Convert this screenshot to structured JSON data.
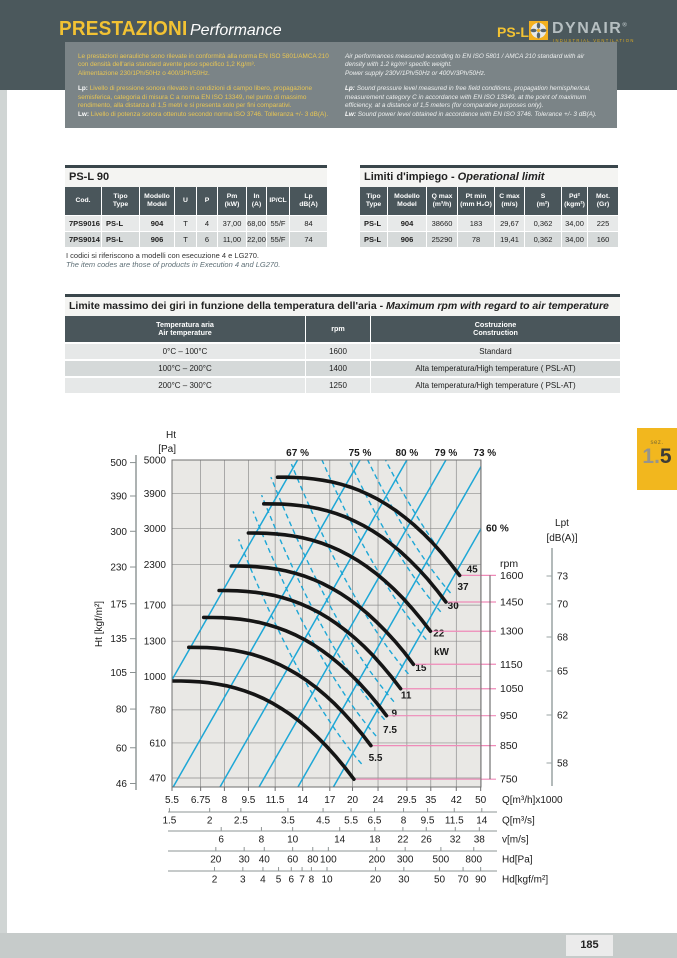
{
  "header": {
    "title_it": "PRESTAZIONI",
    "title_en": "Performance",
    "product": "PS-L",
    "brand": "DYNAIR",
    "brand_reg": "®",
    "brand_tagline": "INDUSTRIAL VENTILATION"
  },
  "info_box": {
    "it": {
      "p1": "Le prestazioni aerauliche sono rilevate in conformità alla norma EN ISO 5801/AMCA 210 con densità dell'aria standard avente peso specifico 1,2 Kg/m³.",
      "p2": "Alimentazione 230/1Ph/50Hz o 400/3Ph/50Hz.",
      "lp_label": "Lp:",
      "lp": " Livello di pressione sonora rilevato in condizioni di campo libero, propagazione semisferica, categoria di misura C a norma EN ISO 13349, nel punto di massimo rendimento, alla distanza di 1,5 metri e si presenta solo per fini comparativi.",
      "lw_label": "Lw:",
      "lw": " Livello di potenza sonora ottenuto secondo norma ISO 3746. Tolleranza +/- 3 dB(A)."
    },
    "en": {
      "p1": "Air performances measured according to EN ISO 5801 / AMCA 210 standard with air density with 1.2 kg/m³ specific weight.",
      "p2": "Power supply 230V/1Ph/50Hz or 400V/3Ph/50Hz.",
      "lp_label": "Lp:",
      "lp": " Sound pressure level measured in free field conditions, propagation hemispherical, measurement category C in accordance with EN ISO 13349, at the point of maximum efficiency, at a distance of 1,5 meters (for comparative purposes only).",
      "lw_label": "Lw:",
      "lw": " Sound power level obtained in accordance with EN ISO 3746. Tolerance +/- 3 dB(A)."
    }
  },
  "table_psl90": {
    "title": "PS-L 90",
    "headers": [
      [
        "Cod.",
        ""
      ],
      [
        "Tipo",
        "Type"
      ],
      [
        "Modello",
        "Model"
      ],
      [
        "U",
        ""
      ],
      [
        "P",
        ""
      ],
      [
        "Pm",
        "(kW)"
      ],
      [
        "In",
        "(A)"
      ],
      [
        "IP/CL",
        ""
      ],
      [
        "Lp",
        "dB(A)"
      ]
    ],
    "rows": [
      [
        "7PS9016",
        "PS-L",
        "904",
        "T",
        "4",
        "37,00",
        "68,00",
        "55/F",
        "84"
      ],
      [
        "7PS9014",
        "PS-L",
        "906",
        "T",
        "6",
        "11,00",
        "22,00",
        "55/F",
        "74"
      ]
    ],
    "note_it": "I codici si riferiscono a modelli con esecuzione 4 e LG270.",
    "note_en": "The item codes are those of products in Execution 4 and LG270."
  },
  "table_limits": {
    "title_it": "Limiti d'impiego - ",
    "title_en": "Operational limit",
    "headers": [
      [
        "Tipo",
        "Type"
      ],
      [
        "Modello",
        "Model"
      ],
      [
        "Q max",
        "(m³/h)"
      ],
      [
        "Pt min",
        "(mm H₂O)"
      ],
      [
        "C max",
        "(m/s)"
      ],
      [
        "S",
        "(m²)"
      ],
      [
        "Pd²",
        "(kgm²)"
      ],
      [
        "Mot.",
        "(Gr)"
      ]
    ],
    "rows": [
      [
        "PS-L",
        "904",
        "38660",
        "183",
        "29,67",
        "0,362",
        "34,00",
        "225"
      ],
      [
        "PS-L",
        "906",
        "25290",
        "78",
        "19,41",
        "0,362",
        "34,00",
        "160"
      ]
    ]
  },
  "table_temp": {
    "title_it": "Limite massimo dei giri in funzione della temperatura dell'aria - ",
    "title_en": "Maximum rpm with regard to air temperature",
    "headers": [
      [
        "Temperatura aria",
        "Air temperature"
      ],
      [
        "rpm",
        ""
      ],
      [
        "Costruzione",
        "Construction"
      ]
    ],
    "rows": [
      [
        "0°C – 100°C",
        "1600",
        "Standard"
      ],
      [
        "100°C – 200°C",
        "1400",
        "Alta temperatura/High temperature ( PSL-AT)"
      ],
      [
        "200°C – 300°C",
        "1250",
        "Alta temperatura/High temperature ( PSL-AT)"
      ]
    ]
  },
  "section_tab": {
    "small": "sez.",
    "big_gray": "1.",
    "big_dark": "5"
  },
  "footer": {
    "page_number": "185"
  },
  "chart_data": {
    "type": "line",
    "x_axes": {
      "q_m3h_x1000": {
        "label": "Q[m³/h]x1000",
        "ticks": [
          5.5,
          6.75,
          8,
          9.5,
          11.5,
          14,
          17,
          20,
          24,
          29.5,
          35,
          42,
          50
        ]
      },
      "q_m3s": {
        "label": "Q[m³/s]",
        "ticks": [
          1.5,
          2,
          2.5,
          3.5,
          4.5,
          5.5,
          6.5,
          8,
          9.5,
          11.5,
          14
        ]
      },
      "v_ms": {
        "label": "v[m/s]",
        "ticks": [
          6,
          8,
          10,
          14,
          18,
          22,
          26,
          32,
          38
        ]
      },
      "hd_pa": {
        "label": "Hd[Pa]",
        "ticks": [
          20,
          30,
          40,
          60,
          80,
          100,
          200,
          300,
          500,
          800
        ]
      },
      "hd_kgf": {
        "label": "Hd[kgf/m²]",
        "ticks": [
          2,
          3,
          4,
          5,
          6,
          7,
          8,
          10,
          20,
          30,
          50,
          70,
          90
        ]
      }
    },
    "y_axes": {
      "ht_pa": {
        "label_1": "Ht",
        "label_2": "[Pa]",
        "ticks": [
          5000,
          3900,
          3000,
          2300,
          1700,
          1300,
          1000,
          780,
          610,
          470
        ]
      },
      "ht_kgf": {
        "label": "Ht [kgf/m²]",
        "ticks": [
          500,
          390,
          300,
          230,
          175,
          135,
          105,
          80,
          60,
          46
        ]
      },
      "rpm": {
        "label": "rpm",
        "ticks": [
          1600,
          1450,
          1300,
          1150,
          1050,
          950,
          850,
          750
        ]
      },
      "lpt_db": {
        "label_1": "Lpt",
        "label_2": "[dB(A)]",
        "ticks": [
          73,
          70,
          68,
          65,
          62,
          58
        ]
      }
    },
    "curves": [
      {
        "rpm": 1600,
        "q_x1000": [
          11.7,
          43.0
        ],
        "ht_pa": [
          4400,
          2120
        ]
      },
      {
        "rpm": 1450,
        "q_x1000": [
          10.6,
          39.0
        ],
        "ht_pa": [
          3610,
          1740
        ]
      },
      {
        "rpm": 1300,
        "q_x1000": [
          9.5,
          34.9
        ],
        "ht_pa": [
          2905,
          1400
        ]
      },
      {
        "rpm": 1150,
        "q_x1000": [
          8.4,
          30.9
        ],
        "ht_pa": [
          2273,
          1095
        ]
      },
      {
        "rpm": 1050,
        "q_x1000": [
          7.7,
          28.2
        ],
        "ht_pa": [
          1895,
          913
        ]
      },
      {
        "rpm": 950,
        "q_x1000": [
          6.9,
          25.5
        ],
        "ht_pa": [
          1551,
          747
        ]
      },
      {
        "rpm": 850,
        "q_x1000": [
          6.2,
          22.8
        ],
        "ht_pa": [
          1242,
          598
        ]
      },
      {
        "rpm": 750,
        "q_x1000": [
          5.5,
          20.2
        ],
        "ht_pa": [
          967,
          466
        ]
      }
    ],
    "efficiency_lines": {
      "labels": [
        "67 %",
        "75 %",
        "80 %",
        "79 %",
        "73 %",
        "60 %"
      ],
      "top_exit_q": [
        13.5,
        21.1,
        29.5,
        39.0,
        51.5
      ],
      "right_exit_ht": 3000
    },
    "power_lines_kw": [
      45,
      37,
      30,
      22,
      15,
      11,
      9,
      7.5,
      5.5
    ],
    "kw_unit_label": "kW"
  }
}
